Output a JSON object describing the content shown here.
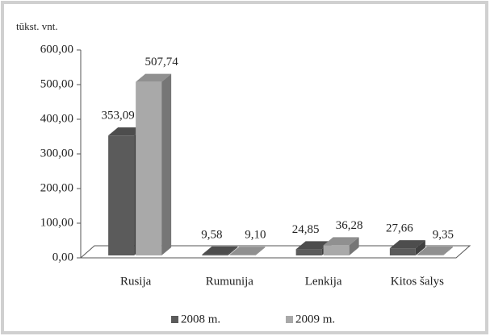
{
  "chart_data": {
    "type": "bar3d",
    "axis_label": "tūkst. vnt.",
    "categories": [
      "Rusija",
      "Rumunija",
      "Lenkija",
      "Kitos šalys"
    ],
    "series": [
      {
        "name": "2008 m.",
        "color": "#5b5b5b",
        "values": [
          353.09,
          9.58,
          24.85,
          27.66
        ],
        "value_labels": [
          "353,09",
          "9,58",
          "24,85",
          "27,66"
        ]
      },
      {
        "name": "2009 m.",
        "color": "#a9a9a9",
        "values": [
          507.74,
          9.1,
          36.28,
          9.35
        ],
        "value_labels": [
          "507,74",
          "9,10",
          "36,28",
          "9,35"
        ]
      }
    ],
    "ylim": [
      0,
      600
    ],
    "yticks": [
      {
        "value": 0,
        "label": "0,00"
      },
      {
        "value": 100,
        "label": "100,00"
      },
      {
        "value": 200,
        "label": "200,00"
      },
      {
        "value": 300,
        "label": "300,00"
      },
      {
        "value": 400,
        "label": "400,00"
      },
      {
        "value": 500,
        "label": "500,00"
      },
      {
        "value": 600,
        "label": "600,00"
      }
    ],
    "grid": false
  }
}
